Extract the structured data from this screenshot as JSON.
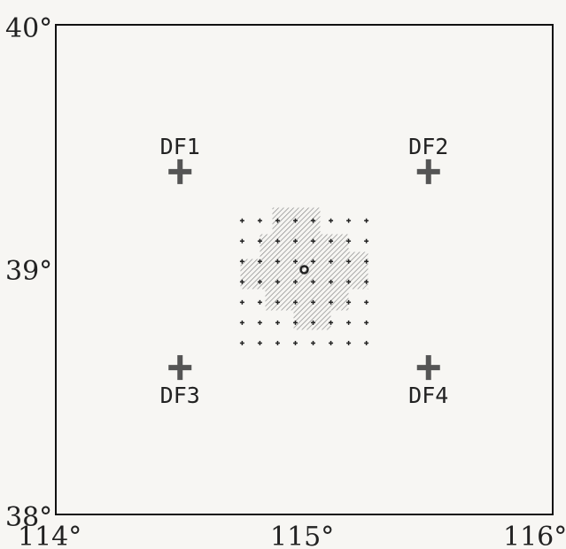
{
  "diagram": {
    "x_range": [
      114,
      116
    ],
    "y_range": [
      38,
      40
    ],
    "x_ticks": [
      {
        "value": 114,
        "label": "114°"
      },
      {
        "value": 115,
        "label": "115°"
      },
      {
        "value": 116,
        "label": "116°"
      }
    ],
    "y_ticks": [
      {
        "value": 40,
        "label": "40°"
      },
      {
        "value": 39,
        "label": "39°"
      },
      {
        "value": 38,
        "label": "38°"
      }
    ],
    "stations": [
      {
        "id": "df1",
        "label": "DF1",
        "lon": 114.5,
        "lat": 39.4,
        "label_position": "above"
      },
      {
        "id": "df2",
        "label": "DF2",
        "lon": 115.5,
        "lat": 39.4,
        "label_position": "above"
      },
      {
        "id": "df3",
        "label": "DF3",
        "lon": 114.5,
        "lat": 38.6,
        "label_position": "below"
      },
      {
        "id": "df4",
        "label": "DF4",
        "lon": 115.5,
        "lat": 38.6,
        "label_position": "below"
      }
    ],
    "grid": {
      "lon_start": 114.75,
      "lon_end": 115.25,
      "lat_start": 38.7,
      "lat_end": 39.2,
      "columns": 8,
      "rows": 7
    },
    "shaded_region": {
      "cross_shaped": true,
      "center": {
        "lon": 115.0,
        "lat": 39.0
      }
    },
    "colors": {
      "frame": "#111111",
      "station": "#555555",
      "grid_dot": "#222222",
      "shading": "#888888"
    }
  }
}
